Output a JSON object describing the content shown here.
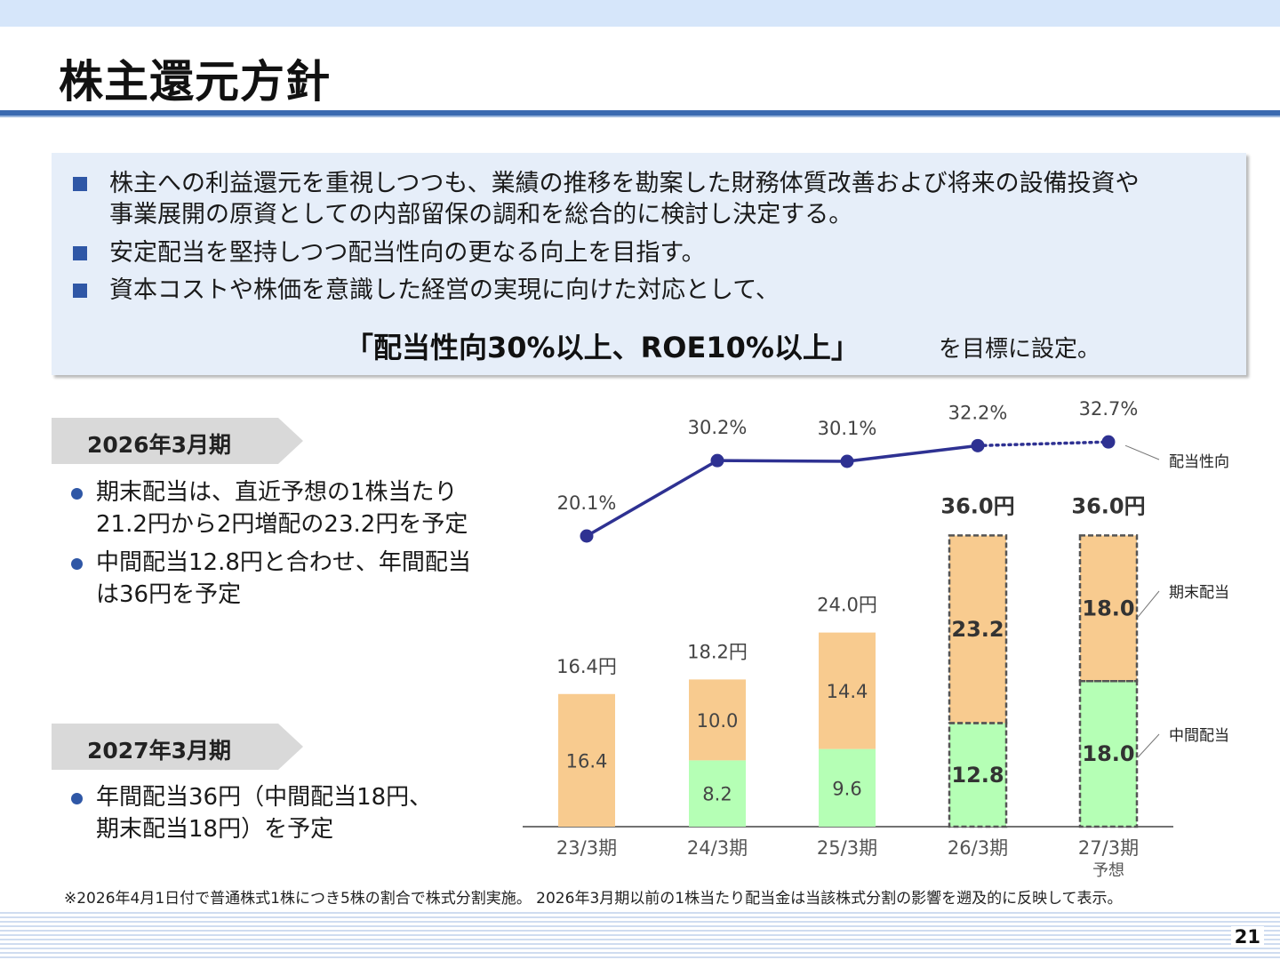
{
  "page": {
    "title": "株主還元方針",
    "page_number": "21",
    "footnote": "※2026年4月1日付で普通株式1株につき5株の割合で株式分割実施。 2026年3月期以前の1株当たり配当金は当該株式分割の影響を遡及的に反映して表示。"
  },
  "policy": {
    "items": [
      {
        "line1": "株主への利益還元を重視しつつも、業績の推移を勘案した財務体質改善および将来の設備投資や",
        "line2": "事業展開の原資としての内部留保の調和を総合的に検討し決定する。"
      },
      {
        "line1": "安定配当を堅持しつつ配当性向の更なる向上を目指す。",
        "line2": ""
      },
      {
        "line1": "資本コストや株価を意識した経営の実現に向けた対応として、",
        "line2": ""
      }
    ],
    "target": "「配当性向30%以上、ROE10%以上」",
    "target_suffix": "を目標に設定。"
  },
  "outlook": [
    {
      "period": "2026年3月期",
      "notes": [
        {
          "line1": "期末配当は、直近予想の1株当たり",
          "line2": "21.2円から2円増配の23.2円を予定"
        },
        {
          "line1": "中間配当12.8円と合わせ、年間配当",
          "line2": "は36円を予定"
        }
      ]
    },
    {
      "period": "2027年3月期",
      "notes": [
        {
          "line1": "年間配当36円（中間配当18円、",
          "line2": "期末配当18円）を予定"
        }
      ]
    }
  ],
  "chart_data": {
    "type": "bar",
    "stacked": true,
    "categories": [
      "23/3期",
      "24/3期",
      "25/3期",
      "26/3期",
      "27/3期"
    ],
    "category_sublabels": [
      "",
      "",
      "",
      "",
      "予想"
    ],
    "series": [
      {
        "name": "中間配当",
        "values": [
          0,
          8.2,
          9.6,
          12.8,
          18.0
        ],
        "labels": [
          "",
          "8.2",
          "9.6",
          "12.8",
          "18.0"
        ],
        "color": "#b5ffb5"
      },
      {
        "name": "期末配当",
        "values": [
          16.4,
          10.0,
          14.4,
          23.2,
          18.0
        ],
        "labels": [
          "16.4",
          "10.0",
          "14.4",
          "23.2",
          "18.0"
        ],
        "color": "#f8cb8f"
      }
    ],
    "totals": [
      16.4,
      18.2,
      24.0,
      36.0,
      36.0
    ],
    "total_labels": [
      "16.4円",
      "18.2円",
      "24.0円",
      "36.0円",
      "36.0円"
    ],
    "highlighted": [
      false,
      false,
      false,
      true,
      true
    ],
    "line_series": {
      "name": "配当性向",
      "values": [
        20.1,
        30.2,
        30.1,
        32.2,
        32.7
      ],
      "labels": [
        "20.1%",
        "30.2%",
        "30.1%",
        "32.2%",
        "32.7%"
      ],
      "forecast_from_index": 3,
      "color": "#2e3192"
    },
    "legend_labels": {
      "line": "配当性向",
      "final": "期末配当",
      "interim": "中間配当"
    },
    "ylim_bars": [
      0,
      40
    ],
    "line_range": [
      20.1,
      32.7
    ]
  }
}
